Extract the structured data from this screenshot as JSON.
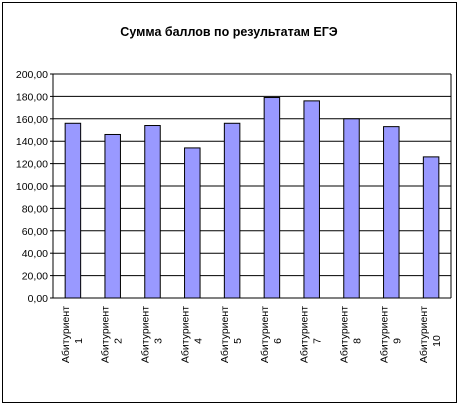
{
  "chart_data": {
    "type": "bar",
    "title": "Сумма баллов по результатам ЕГЭ",
    "categories": [
      [
        "Абитуриент",
        "1"
      ],
      [
        "Абитуриент",
        "2"
      ],
      [
        "Абитуриент",
        "3"
      ],
      [
        "Абитуриент",
        "4"
      ],
      [
        "Абитуриент",
        "5"
      ],
      [
        "Абитуриент",
        "6"
      ],
      [
        "Абитуриент",
        "7"
      ],
      [
        "Абитуриент",
        "8"
      ],
      [
        "Абитуриент",
        "9"
      ],
      [
        "Абитуриент",
        "10"
      ]
    ],
    "values": [
      156,
      146,
      154,
      134,
      156,
      179,
      176,
      160,
      153,
      126
    ],
    "ylim": [
      0,
      200
    ],
    "yticks": [
      "0,00",
      "20,00",
      "40,00",
      "60,00",
      "80,00",
      "100,00",
      "120,00",
      "140,00",
      "160,00",
      "180,00",
      "200,00"
    ],
    "grid": true,
    "legend": "none",
    "colors": {
      "bar_fill": "#9999ff",
      "bar_stroke": "#000000",
      "grid": "#000000"
    }
  }
}
